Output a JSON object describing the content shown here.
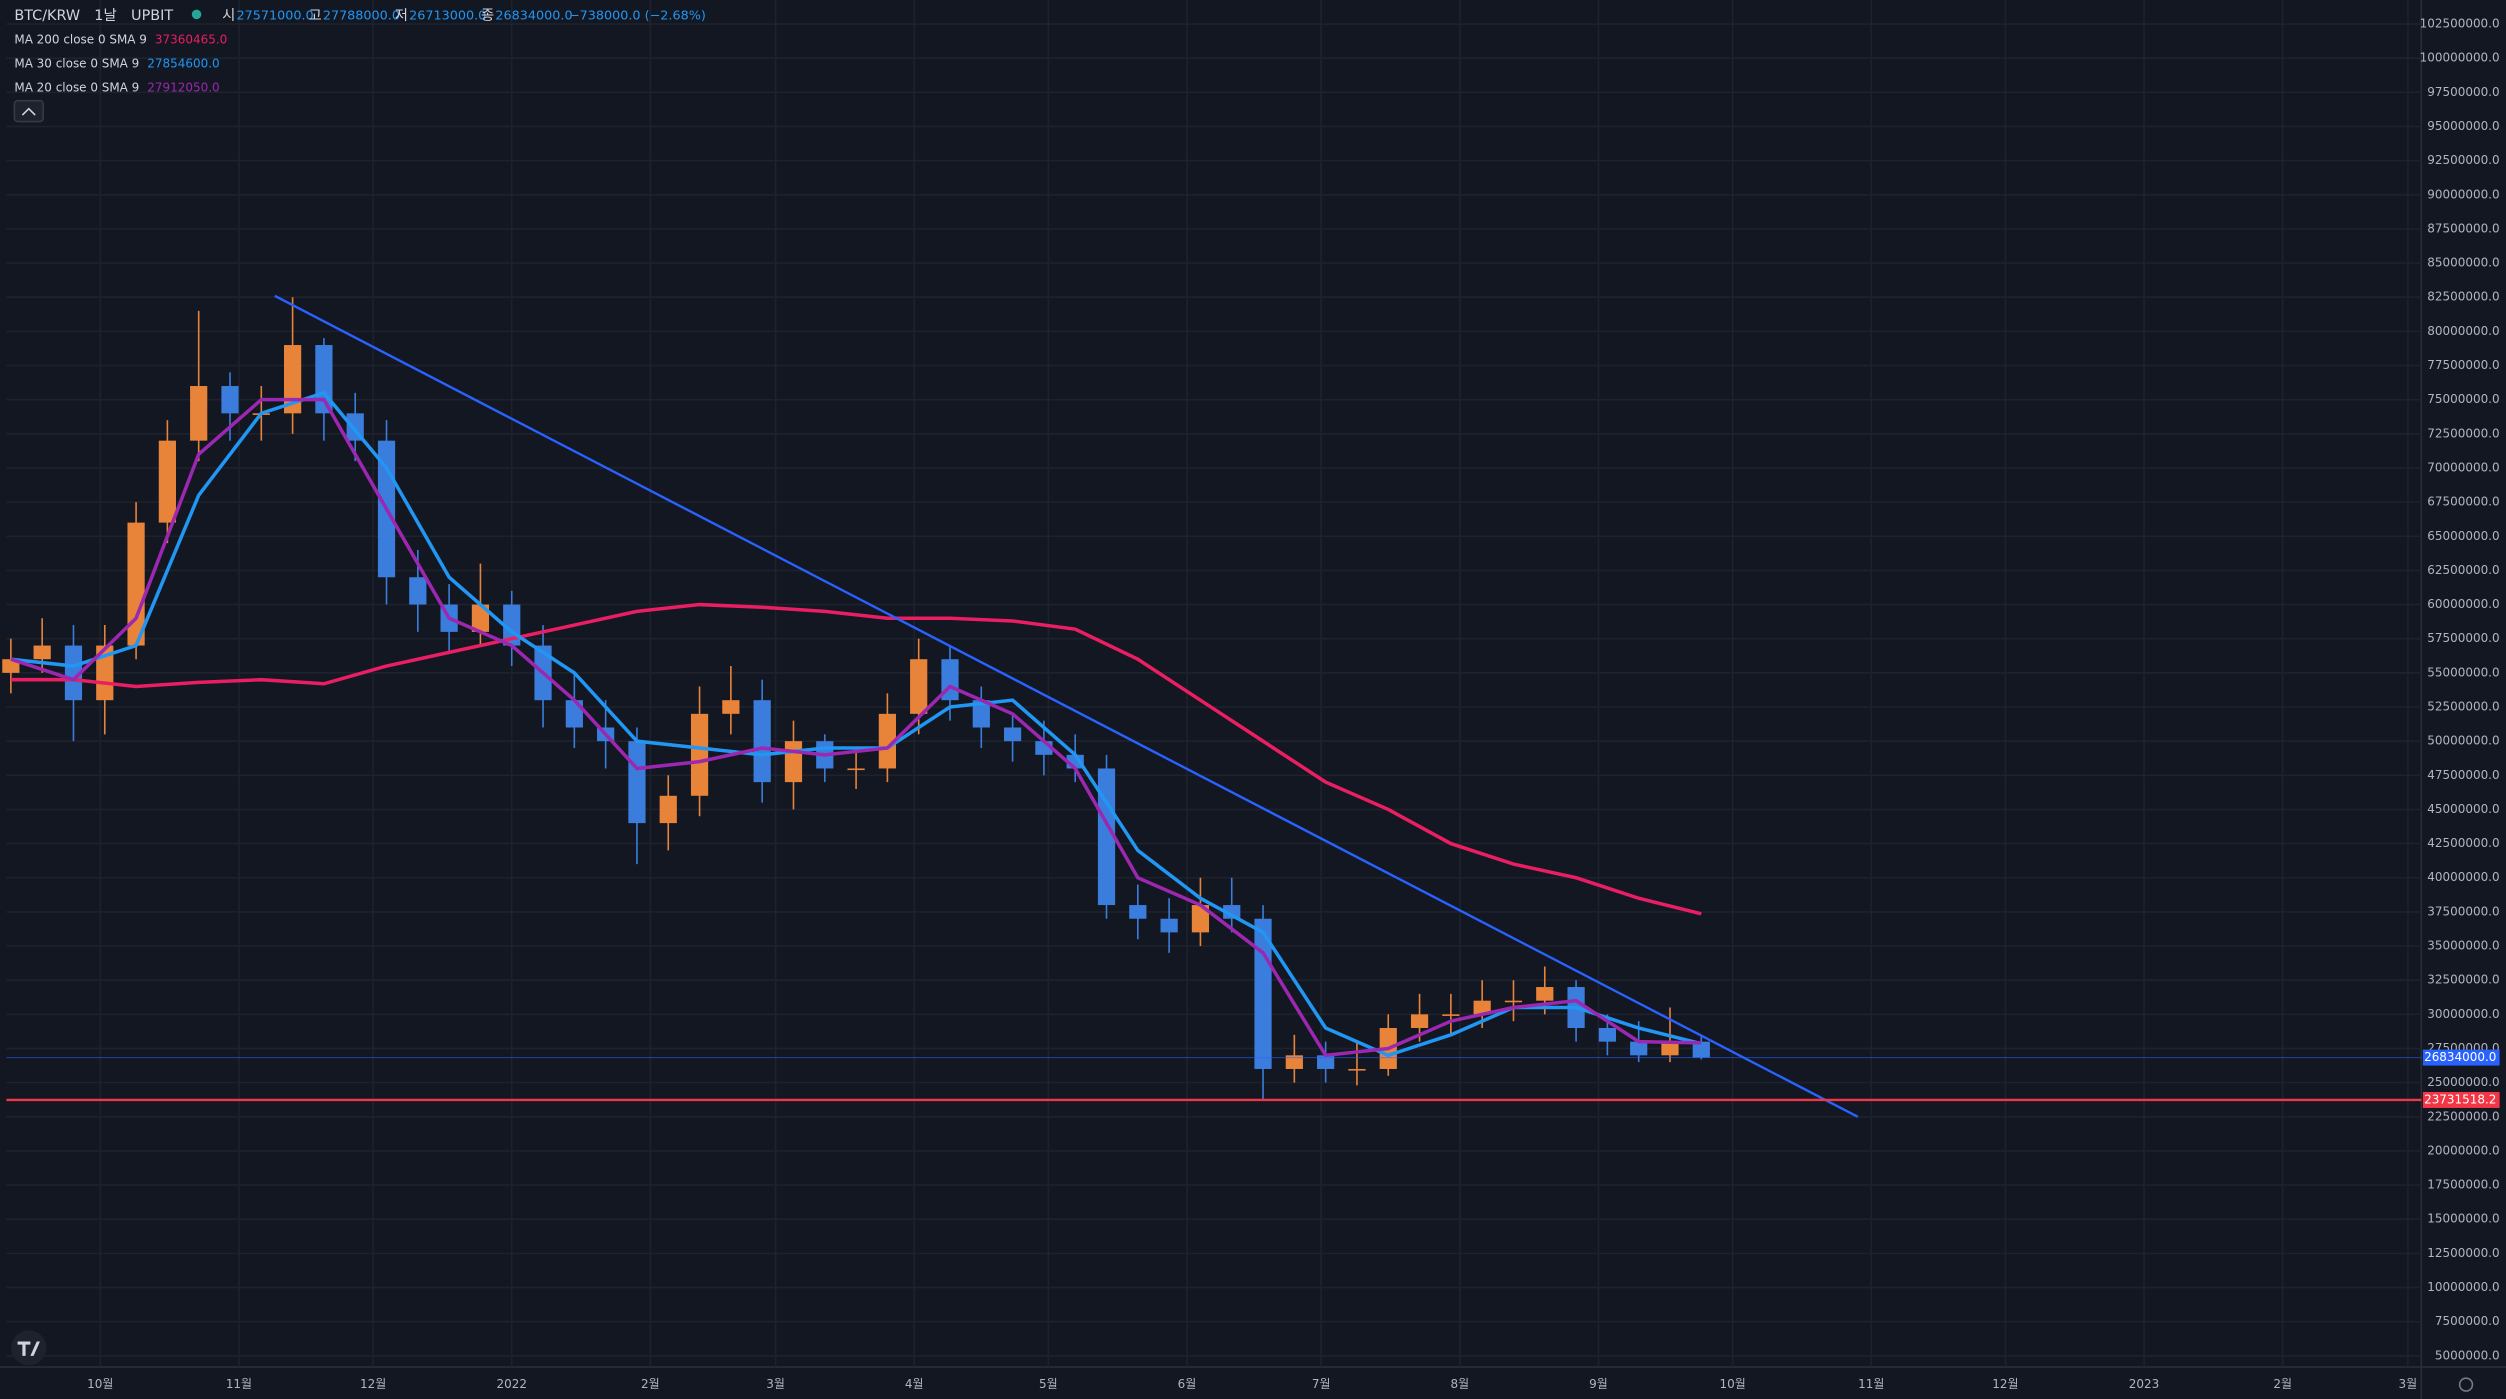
{
  "header": {
    "symbol": "BTC/KRW",
    "interval": "1날",
    "exchange": "UPBIT",
    "open_label": "시",
    "open": "27571000.0",
    "high_label": "고",
    "high": "27788000.0",
    "low_label": "저",
    "low": "26713000.0",
    "close_label": "종",
    "close": "26834000.0",
    "change": "−738000.0 (−2.68%)"
  },
  "chart_data": {
    "type": "candlestick",
    "up_color": "#e8833a",
    "down_color": "#3b7ddd",
    "candles": {
      "x": [
        -20,
        -13,
        -6,
        1,
        8,
        15,
        22,
        29,
        36,
        43,
        50,
        57,
        64,
        71,
        78,
        85,
        92,
        99,
        106,
        113,
        120,
        127,
        134,
        141,
        148,
        155,
        162,
        169,
        176,
        183,
        190,
        197,
        204,
        211,
        218,
        225,
        232,
        239,
        246,
        253,
        260,
        267,
        274,
        281,
        288,
        295,
        302,
        309,
        316,
        323,
        330,
        337,
        344,
        351,
        358
      ],
      "open": [
        55000000,
        56000000,
        57000000,
        53000000,
        57000000,
        66000000,
        72000000,
        76000000,
        74000000,
        74000000,
        79000000,
        74000000,
        72000000,
        62000000,
        60000000,
        58000000,
        60000000,
        57000000,
        53000000,
        51000000,
        50000000,
        44000000,
        46000000,
        52000000,
        53000000,
        47000000,
        50000000,
        48000000,
        48000000,
        52000000,
        56000000,
        53000000,
        51000000,
        50000000,
        49000000,
        48000000,
        38000000,
        37000000,
        36000000,
        38000000,
        37000000,
        26000000,
        27000000,
        26000000,
        26000000,
        29000000,
        30000000,
        30000000,
        31000000,
        31000000,
        32000000,
        29000000,
        28000000,
        27000000,
        28000000
      ],
      "high": [
        57500000,
        59000000,
        58500000,
        58500000,
        67500000,
        73500000,
        81500000,
        77000000,
        76000000,
        82500000,
        79500000,
        75500000,
        73500000,
        64000000,
        61500000,
        63000000,
        61000000,
        58500000,
        55000000,
        53000000,
        51000000,
        47500000,
        54000000,
        55500000,
        54500000,
        51500000,
        50500000,
        49500000,
        53500000,
        57500000,
        57000000,
        54000000,
        52000000,
        51500000,
        50500000,
        49000000,
        39500000,
        38500000,
        40000000,
        40000000,
        38000000,
        28500000,
        28000000,
        28000000,
        30000000,
        31500000,
        31500000,
        32500000,
        32500000,
        33500000,
        32500000,
        30000000,
        29500000,
        30500000,
        28500000
      ],
      "low": [
        53500000,
        55000000,
        50000000,
        50500000,
        56000000,
        64500000,
        70500000,
        72000000,
        72000000,
        72500000,
        72000000,
        70500000,
        60000000,
        58000000,
        56500000,
        57000000,
        55500000,
        51000000,
        49500000,
        48000000,
        41000000,
        42000000,
        44500000,
        50500000,
        45500000,
        45000000,
        47000000,
        46500000,
        47000000,
        50500000,
        51500000,
        49500000,
        48500000,
        47500000,
        47000000,
        37000000,
        35500000,
        34500000,
        35000000,
        36000000,
        23800000,
        25000000,
        25000000,
        24800000,
        25500000,
        28000000,
        28500000,
        29000000,
        29500000,
        30000000,
        28000000,
        27000000,
        26500000,
        26500000,
        26700000
      ],
      "close": [
        56000000,
        57000000,
        53000000,
        57000000,
        66000000,
        72000000,
        76000000,
        74000000,
        74000000,
        79000000,
        74000000,
        72000000,
        62000000,
        60000000,
        58000000,
        60000000,
        57000000,
        53000000,
        51000000,
        50000000,
        44000000,
        46000000,
        52000000,
        53000000,
        47000000,
        50000000,
        48000000,
        48000000,
        52000000,
        56000000,
        53000000,
        51000000,
        50000000,
        49000000,
        48000000,
        38000000,
        37000000,
        36000000,
        38000000,
        37000000,
        26000000,
        27000000,
        26000000,
        26000000,
        29000000,
        30000000,
        30000000,
        31000000,
        31000000,
        32000000,
        29000000,
        28000000,
        27000000,
        28000000,
        26834000
      ]
    },
    "series": [
      {
        "name": "MA 200 close 0 SMA 9",
        "last": "37360465.0",
        "color": "#e91e63",
        "x": [
          -20,
          -6,
          8,
          22,
          36,
          50,
          64,
          78,
          92,
          106,
          120,
          134,
          148,
          162,
          176,
          190,
          204,
          218,
          232,
          246,
          260,
          274,
          288,
          302,
          316,
          330,
          344,
          358
        ],
        "values": [
          54500000,
          54500000,
          54000000,
          54300000,
          54500000,
          54200000,
          55500000,
          56500000,
          57500000,
          58500000,
          59500000,
          60000000,
          59800000,
          59500000,
          59000000,
          59000000,
          58800000,
          58200000,
          56000000,
          53000000,
          50000000,
          47000000,
          45000000,
          42500000,
          41000000,
          40000000,
          38500000,
          37360465
        ]
      },
      {
        "name": "MA 30 close 0 SMA 9",
        "last": "27854600.0",
        "color": "#2196f3",
        "x": [
          -20,
          -6,
          8,
          22,
          36,
          50,
          64,
          78,
          92,
          106,
          120,
          134,
          148,
          162,
          176,
          190,
          204,
          218,
          232,
          246,
          260,
          274,
          288,
          302,
          316,
          330,
          344,
          358
        ],
        "values": [
          56000000,
          55500000,
          57000000,
          68000000,
          74000000,
          75500000,
          70000000,
          62000000,
          58000000,
          55000000,
          50000000,
          49500000,
          49000000,
          49500000,
          49500000,
          52500000,
          53000000,
          49000000,
          42000000,
          38500000,
          36000000,
          29000000,
          27000000,
          28500000,
          30500000,
          30500000,
          29000000,
          27854600
        ]
      },
      {
        "name": "MA 20 close 0 SMA 9",
        "last": "27912050.0",
        "color": "#9c27b0",
        "x": [
          -20,
          -6,
          8,
          22,
          36,
          50,
          64,
          78,
          92,
          106,
          120,
          134,
          148,
          162,
          176,
          190,
          204,
          218,
          232,
          246,
          260,
          274,
          288,
          302,
          316,
          330,
          344,
          358
        ],
        "values": [
          56000000,
          54500000,
          59000000,
          71000000,
          75000000,
          75000000,
          67000000,
          59000000,
          57000000,
          53000000,
          48000000,
          48500000,
          49500000,
          49000000,
          49500000,
          54000000,
          52000000,
          48000000,
          40000000,
          38000000,
          34500000,
          27000000,
          27500000,
          29500000,
          30500000,
          31000000,
          28000000,
          27912050
        ]
      }
    ],
    "trend_line": {
      "x": [
        39,
        393
      ],
      "y": [
        82600000,
        22500000
      ],
      "color": "#2962ff"
    },
    "price_lines": [
      {
        "value": 26834000,
        "label": "26834000.0",
        "color": "#2962ff"
      },
      {
        "value": 23731518.2,
        "label": "23731518.2",
        "color": "#f23645"
      }
    ],
    "xlim": [
      -21,
      519
    ],
    "xticks": [
      {
        "value": 0,
        "label": "10월"
      },
      {
        "value": 31,
        "label": "11월"
      },
      {
        "value": 61,
        "label": "12월"
      },
      {
        "value": 92,
        "label": "2022"
      },
      {
        "value": 123,
        "label": "2월"
      },
      {
        "value": 151,
        "label": "3월"
      },
      {
        "value": 182,
        "label": "4월"
      },
      {
        "value": 212,
        "label": "5월"
      },
      {
        "value": 243,
        "label": "6월"
      },
      {
        "value": 273,
        "label": "7월"
      },
      {
        "value": 304,
        "label": "8월"
      },
      {
        "value": 335,
        "label": "9월"
      },
      {
        "value": 365,
        "label": "10월"
      },
      {
        "value": 396,
        "label": "11월"
      },
      {
        "value": 426,
        "label": "12월"
      },
      {
        "value": 457,
        "label": "2023"
      },
      {
        "value": 488,
        "label": "2월"
      },
      {
        "value": 516,
        "label": "3월"
      }
    ],
    "ylim": [
      4180000,
      104260000
    ],
    "yticks": [
      {
        "value": 5000000,
        "label": "5000000.0"
      },
      {
        "value": 7500000,
        "label": "7500000.0"
      },
      {
        "value": 10000000,
        "label": "10000000.0"
      },
      {
        "value": 12500000,
        "label": "12500000.0"
      },
      {
        "value": 15000000,
        "label": "15000000.0"
      },
      {
        "value": 17500000,
        "label": "17500000.0"
      },
      {
        "value": 20000000,
        "label": "20000000.0"
      },
      {
        "value": 22500000,
        "label": "22500000.0"
      },
      {
        "value": 25000000,
        "label": "25000000.0"
      },
      {
        "value": 27500000,
        "label": "27500000.0"
      },
      {
        "value": 30000000,
        "label": "30000000.0"
      },
      {
        "value": 32500000,
        "label": "32500000.0"
      },
      {
        "value": 35000000,
        "label": "35000000.0"
      },
      {
        "value": 37500000,
        "label": "37500000.0"
      },
      {
        "value": 40000000,
        "label": "40000000.0"
      },
      {
        "value": 42500000,
        "label": "42500000.0"
      },
      {
        "value": 45000000,
        "label": "45000000.0"
      },
      {
        "value": 47500000,
        "label": "47500000.0"
      },
      {
        "value": 50000000,
        "label": "50000000.0"
      },
      {
        "value": 52500000,
        "label": "52500000.0"
      },
      {
        "value": 55000000,
        "label": "55000000.0"
      },
      {
        "value": 57500000,
        "label": "57500000.0"
      },
      {
        "value": 60000000,
        "label": "60000000.0"
      },
      {
        "value": 62500000,
        "label": "62500000.0"
      },
      {
        "value": 65000000,
        "label": "65000000.0"
      },
      {
        "value": 67500000,
        "label": "67500000.0"
      },
      {
        "value": 70000000,
        "label": "70000000.0"
      },
      {
        "value": 72500000,
        "label": "72500000.0"
      },
      {
        "value": 75000000,
        "label": "75000000.0"
      },
      {
        "value": 77500000,
        "label": "77500000.0"
      },
      {
        "value": 80000000,
        "label": "80000000.0"
      },
      {
        "value": 82500000,
        "label": "82500000.0"
      },
      {
        "value": 85000000,
        "label": "85000000.0"
      },
      {
        "value": 87500000,
        "label": "87500000.0"
      },
      {
        "value": 90000000,
        "label": "90000000.0"
      },
      {
        "value": 92500000,
        "label": "92500000.0"
      },
      {
        "value": 95000000,
        "label": "95000000.0"
      },
      {
        "value": 97500000,
        "label": "97500000.0"
      },
      {
        "value": 100000000,
        "label": "100000000.0"
      },
      {
        "value": 102500000,
        "label": "102500000.0"
      }
    ],
    "grid": true
  }
}
